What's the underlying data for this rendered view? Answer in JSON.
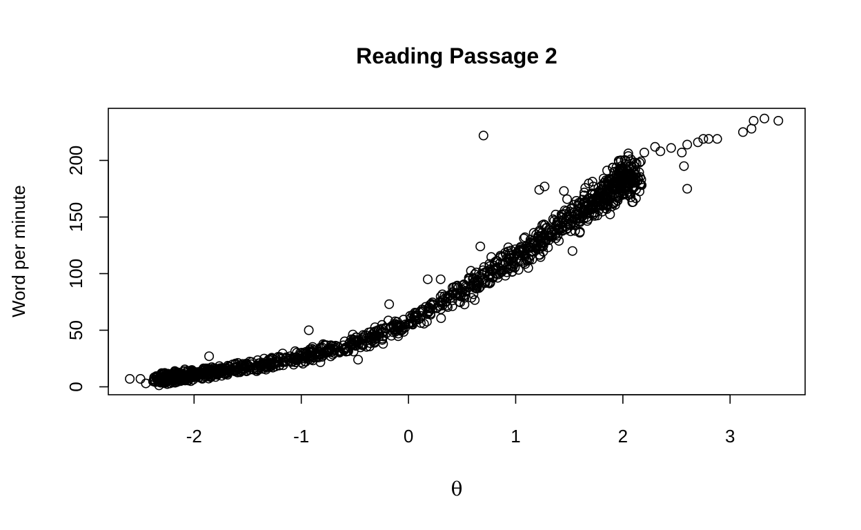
{
  "chart_data": {
    "type": "scatter",
    "title": "Reading Passage 2",
    "xlabel": "θ",
    "ylabel": "Word per minute",
    "xlim": [
      -2.8,
      3.7
    ],
    "ylim": [
      -7,
      246
    ],
    "xticks": [
      -2,
      -1,
      0,
      1,
      2,
      3
    ],
    "xtick_labels": [
      "-2",
      "-1",
      "0",
      "1",
      "2",
      "3"
    ],
    "yticks": [
      0,
      50,
      100,
      150,
      200
    ],
    "ytick_labels": [
      "0",
      "50",
      "100",
      "150",
      "200"
    ],
    "grid": false,
    "marker": "open-circle",
    "outliers": [
      {
        "x": -2.6,
        "y": 7
      },
      {
        "x": -2.5,
        "y": 7
      },
      {
        "x": -2.45,
        "y": 3
      },
      {
        "x": -1.86,
        "y": 27
      },
      {
        "x": -0.93,
        "y": 50
      },
      {
        "x": -0.47,
        "y": 24
      },
      {
        "x": -0.18,
        "y": 73
      },
      {
        "x": 0.18,
        "y": 95
      },
      {
        "x": 0.3,
        "y": 95
      },
      {
        "x": 0.7,
        "y": 222
      },
      {
        "x": 0.67,
        "y": 124
      },
      {
        "x": 1.22,
        "y": 174
      },
      {
        "x": 1.27,
        "y": 177
      },
      {
        "x": 1.45,
        "y": 173
      },
      {
        "x": 1.53,
        "y": 120
      },
      {
        "x": 1.6,
        "y": 137
      },
      {
        "x": 1.85,
        "y": 157
      },
      {
        "x": 1.8,
        "y": 172
      },
      {
        "x": 2.2,
        "y": 207
      },
      {
        "x": 2.3,
        "y": 212
      },
      {
        "x": 2.35,
        "y": 208
      },
      {
        "x": 2.45,
        "y": 211
      },
      {
        "x": 2.55,
        "y": 207
      },
      {
        "x": 2.57,
        "y": 195
      },
      {
        "x": 2.6,
        "y": 175
      },
      {
        "x": 2.6,
        "y": 214
      },
      {
        "x": 2.7,
        "y": 216
      },
      {
        "x": 2.75,
        "y": 219
      },
      {
        "x": 2.8,
        "y": 219
      },
      {
        "x": 2.88,
        "y": 219
      },
      {
        "x": 3.12,
        "y": 225
      },
      {
        "x": 3.2,
        "y": 228
      },
      {
        "x": 3.22,
        "y": 235
      },
      {
        "x": 3.32,
        "y": 237
      },
      {
        "x": 3.45,
        "y": 235
      }
    ],
    "trend": {
      "description": "dense cloud of about 2000 observations following a convex increasing curve",
      "x_range": [
        -2.3,
        2.1
      ],
      "points": [
        {
          "x": -2.3,
          "y": 7
        },
        {
          "x": -2.0,
          "y": 11
        },
        {
          "x": -1.5,
          "y": 17
        },
        {
          "x": -1.0,
          "y": 26
        },
        {
          "x": -0.5,
          "y": 38
        },
        {
          "x": 0.0,
          "y": 57
        },
        {
          "x": 0.5,
          "y": 84
        },
        {
          "x": 1.0,
          "y": 114
        },
        {
          "x": 1.5,
          "y": 148
        },
        {
          "x": 2.0,
          "y": 183
        }
      ]
    }
  }
}
